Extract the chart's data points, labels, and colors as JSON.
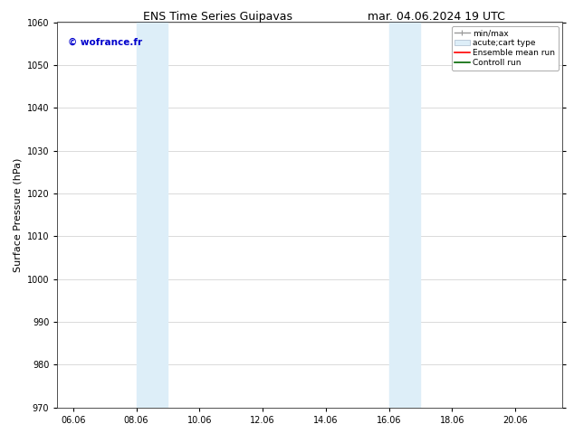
{
  "title_left": "ENS Time Series Guipavas",
  "title_right": "mar. 04.06.2024 19 UTC",
  "ylabel": "Surface Pressure (hPa)",
  "ylim": [
    970,
    1060
  ],
  "yticks": [
    970,
    980,
    990,
    1000,
    1010,
    1020,
    1030,
    1040,
    1050,
    1060
  ],
  "xtick_labels": [
    "06.06",
    "08.06",
    "10.06",
    "12.06",
    "14.06",
    "16.06",
    "18.06",
    "20.06"
  ],
  "xtick_positions": [
    0,
    2,
    4,
    6,
    8,
    10,
    12,
    14
  ],
  "xlim": [
    -0.5,
    15.5
  ],
  "shaded_regions": [
    {
      "x_start": 2.0,
      "x_end": 3.0
    },
    {
      "x_start": 10.0,
      "x_end": 11.0
    }
  ],
  "shaded_color": "#ddeef8",
  "watermark_text": "© wofrance.fr",
  "watermark_color": "#0000cc",
  "watermark_fontsize": 7.5,
  "legend_entries": [
    {
      "label": "min/max"
    },
    {
      "label": "acute;cart type"
    },
    {
      "label": "Ensemble mean run"
    },
    {
      "label": "Controll run"
    }
  ],
  "bg_color": "#ffffff",
  "grid_color": "#cccccc",
  "title_fontsize": 9,
  "tick_fontsize": 7,
  "label_fontsize": 8,
  "legend_fontsize": 6.5
}
